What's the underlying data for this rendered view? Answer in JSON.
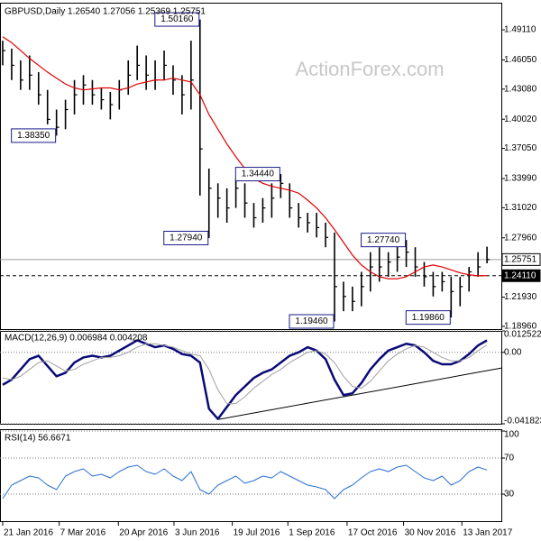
{
  "chart_data": [
    {
      "type": "ohlc",
      "title": "GBPUSD,Daily 1.26540 1.27056 1.25369 1.25751",
      "watermark": "ActionForex.com",
      "x": [
        0,
        1,
        2,
        3,
        4,
        5,
        6,
        7,
        8,
        9,
        10,
        11,
        12,
        13,
        14,
        15,
        16,
        17,
        18,
        19,
        20,
        21,
        22,
        23,
        24,
        25,
        26,
        27,
        28,
        29,
        30,
        31,
        32,
        33,
        34,
        35,
        36,
        37,
        38,
        39,
        40,
        41,
        42,
        43,
        44,
        45,
        46,
        47,
        48,
        49,
        50,
        51,
        52,
        53,
        54
      ],
      "xlim": [
        -0.3,
        55.7
      ],
      "ylim": [
        1.1868,
        1.5168
      ],
      "yticks": [
        {
          "value": 1.4911,
          "label": "1.49110"
        },
        {
          "value": 1.4605,
          "label": "1.46050"
        },
        {
          "value": 1.4308,
          "label": "1.43080"
        },
        {
          "value": 1.4002,
          "label": "1.40020"
        },
        {
          "value": 1.3705,
          "label": "1.37050"
        },
        {
          "value": 1.3399,
          "label": "1.33990"
        },
        {
          "value": 1.3102,
          "label": "1.31020"
        },
        {
          "value": 1.2796,
          "label": "1.27960"
        },
        {
          "value": 1.2193,
          "label": "1.21930"
        },
        {
          "value": 1.1896,
          "label": "1.18960"
        }
      ],
      "bars": {
        "color": "#000000",
        "high": [
          1.48,
          1.472,
          1.46,
          1.465,
          1.448,
          1.43,
          1.41,
          1.42,
          1.44,
          1.445,
          1.44,
          1.432,
          1.428,
          1.44,
          1.46,
          1.475,
          1.465,
          1.46,
          1.47,
          1.455,
          1.445,
          1.48,
          1.5016,
          1.35,
          1.335,
          1.33,
          1.34,
          1.335,
          1.315,
          1.32,
          1.335,
          1.3444,
          1.335,
          1.315,
          1.305,
          1.305,
          1.295,
          1.285,
          1.235,
          1.23,
          1.245,
          1.265,
          1.27,
          1.265,
          1.272,
          1.2774,
          1.27,
          1.255,
          1.245,
          1.245,
          1.24,
          1.24,
          1.25,
          1.265,
          1.2706
        ],
        "low": [
          1.455,
          1.44,
          1.43,
          1.43,
          1.415,
          1.395,
          1.3835,
          1.39,
          1.405,
          1.415,
          1.415,
          1.41,
          1.4,
          1.41,
          1.425,
          1.44,
          1.43,
          1.43,
          1.44,
          1.425,
          1.405,
          1.41,
          1.3226,
          1.2794,
          1.3,
          1.295,
          1.31,
          1.3,
          1.29,
          1.295,
          1.3,
          1.32,
          1.3,
          1.29,
          1.285,
          1.28,
          1.27,
          1.1946,
          1.205,
          1.205,
          1.21,
          1.225,
          1.235,
          1.24,
          1.245,
          1.25,
          1.24,
          1.23,
          1.22,
          1.225,
          1.1986,
          1.21,
          1.225,
          1.24,
          1.2537
        ],
        "close": [
          1.47,
          1.455,
          1.44,
          1.445,
          1.425,
          1.4,
          1.392,
          1.41,
          1.425,
          1.435,
          1.425,
          1.42,
          1.415,
          1.43,
          1.445,
          1.455,
          1.445,
          1.44,
          1.455,
          1.44,
          1.425,
          1.44,
          1.37,
          1.33,
          1.32,
          1.31,
          1.33,
          1.315,
          1.3,
          1.31,
          1.32,
          1.335,
          1.31,
          1.3,
          1.295,
          1.29,
          1.28,
          1.23,
          1.22,
          1.215,
          1.23,
          1.25,
          1.25,
          1.255,
          1.26,
          1.265,
          1.25,
          1.24,
          1.23,
          1.235,
          1.225,
          1.23,
          1.245,
          1.25,
          1.2575
        ]
      },
      "lines": [
        {
          "color": "#e00000",
          "values": [
            1.484,
            1.478,
            1.47,
            1.462,
            1.455,
            1.448,
            1.442,
            1.436,
            1.432,
            1.43,
            1.431,
            1.432,
            1.432,
            1.43,
            1.432,
            1.436,
            1.438,
            1.44,
            1.44,
            1.442,
            1.44,
            1.438,
            1.425,
            1.405,
            1.39,
            1.375,
            1.362,
            1.35,
            1.34,
            1.335,
            1.332,
            1.33,
            1.328,
            1.325,
            1.318,
            1.31,
            1.3,
            1.288,
            1.275,
            1.262,
            1.252,
            1.245,
            1.24,
            1.238,
            1.238,
            1.24,
            1.245,
            1.25,
            1.252,
            1.25,
            1.247,
            1.244,
            1.242,
            1.241,
            1.2411
          ]
        }
      ],
      "levels": [
        {
          "value": 1.25751,
          "label": "1.25751",
          "dashed": false
        },
        {
          "value": 1.2411,
          "label": "1.24110",
          "dashed": true
        }
      ],
      "annotations": [
        {
          "x": 22,
          "value": 1.5016,
          "label": "1.50160"
        },
        {
          "x": 6,
          "value": 1.3835,
          "label": "1.38350"
        },
        {
          "x": 31,
          "value": 1.3444,
          "label": "1.34440"
        },
        {
          "x": 23,
          "value": 1.2794,
          "label": "1.27940"
        },
        {
          "x": 45,
          "value": 1.2774,
          "label": "1.27740"
        },
        {
          "x": 37,
          "value": 1.1946,
          "label": "1.19460"
        },
        {
          "x": 50,
          "value": 1.1986,
          "label": "1.19860"
        }
      ]
    },
    {
      "type": "line",
      "title": "MACD(12,26,9) 0.006984 0.004208",
      "x": [
        0,
        1,
        2,
        3,
        4,
        5,
        6,
        7,
        8,
        9,
        10,
        11,
        12,
        13,
        14,
        15,
        16,
        17,
        18,
        19,
        20,
        21,
        22,
        23,
        24,
        25,
        26,
        27,
        28,
        29,
        30,
        31,
        32,
        33,
        34,
        35,
        36,
        37,
        38,
        39,
        40,
        41,
        42,
        43,
        44,
        45,
        46,
        47,
        48,
        49,
        50,
        51,
        52,
        53,
        54
      ],
      "xlim": [
        -0.3,
        55.7
      ],
      "ylim": [
        -0.041823,
        0.012522
      ],
      "grid": true,
      "yticks": [
        0.012522,
        {
          "value": 0,
          "label": "0.00"
        },
        -0.041823
      ],
      "series": [
        {
          "color": "#0a0a78",
          "values": [
            -0.019,
            -0.016,
            -0.01,
            -0.004,
            -0.002,
            -0.008,
            -0.014,
            -0.012,
            -0.006,
            -0.003,
            -0.002,
            -0.003,
            -0.002,
            0.001,
            0.004,
            0.007,
            0.005,
            0.003,
            0.004,
            0.002,
            -0.001,
            -0.002,
            -0.006,
            -0.033,
            -0.039,
            -0.032,
            -0.025,
            -0.02,
            -0.015,
            -0.012,
            -0.01,
            -0.006,
            -0.002,
            0,
            0.003,
            0.001,
            -0.004,
            -0.016,
            -0.025,
            -0.024,
            -0.018,
            -0.01,
            -0.004,
            0.001,
            0.003,
            0.005,
            0.004,
            0,
            -0.005,
            -0.007,
            -0.007,
            -0.005,
            -0.001,
            0.004,
            0.006984
          ]
        },
        {
          "color": "#a0a0a0",
          "values": [
            -0.015,
            -0.016,
            -0.014,
            -0.01,
            -0.006,
            -0.005,
            -0.008,
            -0.011,
            -0.01,
            -0.007,
            -0.005,
            -0.003,
            -0.003,
            -0.002,
            0,
            0.003,
            0.005,
            0.005,
            0.004,
            0.003,
            0.001,
            -0.001,
            -0.002,
            -0.01,
            -0.022,
            -0.03,
            -0.03,
            -0.026,
            -0.021,
            -0.017,
            -0.013,
            -0.01,
            -0.006,
            -0.003,
            0,
            0.001,
            -0.001,
            -0.006,
            -0.014,
            -0.02,
            -0.021,
            -0.017,
            -0.011,
            -0.005,
            -0.001,
            0.002,
            0.004,
            0.003,
            0,
            -0.003,
            -0.005,
            -0.005,
            -0.003,
            0.001,
            0.004208
          ]
        }
      ]
    },
    {
      "type": "line",
      "title": "RSI(14) 56.6671",
      "x": [
        0,
        1,
        2,
        3,
        4,
        5,
        6,
        7,
        8,
        9,
        10,
        11,
        12,
        13,
        14,
        15,
        16,
        17,
        18,
        19,
        20,
        21,
        22,
        23,
        24,
        25,
        26,
        27,
        28,
        29,
        30,
        31,
        32,
        33,
        34,
        35,
        36,
        37,
        38,
        39,
        40,
        41,
        42,
        43,
        44,
        45,
        46,
        47,
        48,
        49,
        50,
        51,
        52,
        53,
        54
      ],
      "xlim": [
        -0.3,
        55.7
      ],
      "ylim": [
        0,
        100
      ],
      "grid": true,
      "yticks": [
        100,
        70,
        30
      ],
      "xticks": [
        {
          "value": 0,
          "label": "21 Jan 2016"
        },
        {
          "value": 6.3,
          "label": "7 Mar 2016"
        },
        {
          "value": 12.9,
          "label": "20 Apr 2016"
        },
        {
          "value": 19.1,
          "label": "3 Jun 2016"
        },
        {
          "value": 25.6,
          "label": "19 Jul 2016"
        },
        {
          "value": 31.8,
          "label": "1 Sep 2016"
        },
        {
          "value": 38.4,
          "label": "17 Oct 2016"
        },
        {
          "value": 44.7,
          "label": "30 Nov 2016"
        },
        {
          "value": 51.2,
          "label": "13 Jan 2017"
        }
      ],
      "series": [
        {
          "color": "#2a6fd6",
          "values": [
            25,
            40,
            45,
            50,
            48,
            40,
            35,
            50,
            55,
            58,
            50,
            52,
            48,
            55,
            60,
            62,
            55,
            52,
            58,
            50,
            45,
            55,
            35,
            30,
            40,
            45,
            50,
            42,
            45,
            50,
            48,
            55,
            50,
            45,
            40,
            38,
            35,
            25,
            35,
            40,
            48,
            55,
            58,
            55,
            60,
            62,
            55,
            48,
            45,
            50,
            40,
            45,
            55,
            60,
            56.6671
          ]
        }
      ]
    }
  ]
}
